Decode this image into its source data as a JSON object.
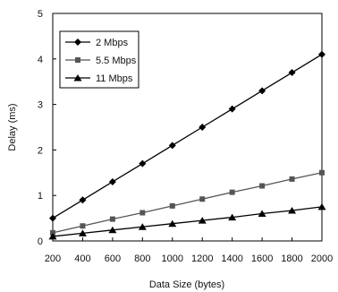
{
  "chart_data": {
    "type": "line",
    "xlabel": "Data Size (bytes)",
    "ylabel": "Delay (ms)",
    "x": [
      200,
      400,
      600,
      800,
      1000,
      1200,
      1400,
      1600,
      1800,
      2000
    ],
    "xlim": [
      200,
      2000
    ],
    "ylim": [
      0,
      5
    ],
    "x_ticks": [
      "200",
      "400",
      "600",
      "800",
      "1000",
      "1200",
      "1400",
      "1600",
      "1800",
      "2000"
    ],
    "y_ticks": [
      "0",
      "1",
      "2",
      "3",
      "4",
      "5"
    ],
    "grid": false,
    "legend_position": "top-left",
    "series": [
      {
        "name": "2 Mbps",
        "marker": "diamond",
        "color": "#000000",
        "values": [
          0.5,
          0.9,
          1.3,
          1.7,
          2.1,
          2.5,
          2.9,
          3.3,
          3.7,
          4.1
        ]
      },
      {
        "name": "5.5 Mbps",
        "marker": "square",
        "color": "#555555",
        "values": [
          0.18,
          0.33,
          0.48,
          0.62,
          0.77,
          0.92,
          1.07,
          1.21,
          1.36,
          1.5
        ]
      },
      {
        "name": "11 Mbps",
        "marker": "triangle",
        "color": "#000000",
        "values": [
          0.1,
          0.17,
          0.24,
          0.31,
          0.38,
          0.45,
          0.52,
          0.6,
          0.67,
          0.75
        ]
      }
    ]
  }
}
